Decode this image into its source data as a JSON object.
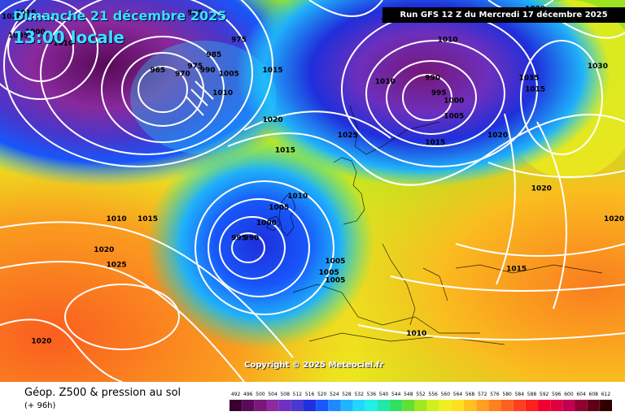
{
  "header": {
    "date_title": "Dimanche 21 décembre 2025",
    "time_title": "13:00 locale",
    "run_info": "Run GFS 12 Z du Mercredi 17 décembre 2025"
  },
  "footer": {
    "product_title": "Géop. Z500 & pression au sol",
    "product_subtitle": "(+ 96h)",
    "copyright": "Copyright © 2025 Meteociel.fr"
  },
  "legend": {
    "values": [
      "492",
      "496",
      "500",
      "504",
      "508",
      "512",
      "516",
      "520",
      "524",
      "528",
      "532",
      "536",
      "540",
      "544",
      "548",
      "552",
      "556",
      "560",
      "564",
      "568",
      "572",
      "576",
      "580",
      "584",
      "588",
      "592",
      "596",
      "600",
      "604",
      "608",
      "612"
    ],
    "colors": [
      "#3a0032",
      "#5a0a58",
      "#7a187a",
      "#8c2aa0",
      "#7030c0",
      "#4a38d0",
      "#2030e0",
      "#1858ff",
      "#1e88ff",
      "#20b4ff",
      "#20d8ff",
      "#20f0e6",
      "#20e8a8",
      "#30e060",
      "#60e030",
      "#a0e820",
      "#d0f020",
      "#f0f020",
      "#ffe020",
      "#ffc020",
      "#ffa020",
      "#ff8020",
      "#ff6020",
      "#ff4020",
      "#ff2020",
      "#f00030",
      "#e00040",
      "#c00050",
      "#900030",
      "#600018",
      "#300000"
    ]
  },
  "isobars": [
    {
      "label": "1015",
      "x": 2.5,
      "y": 2
    },
    {
      "label": "1020",
      "x": 0,
      "y": 3
    },
    {
      "label": "1005",
      "x": 1.3,
      "y": 8
    },
    {
      "label": "1000",
      "x": 4,
      "y": 7
    },
    {
      "label": "1010",
      "x": 8.5,
      "y": 10
    },
    {
      "label": "995",
      "x": 30,
      "y": 2
    },
    {
      "label": "975",
      "x": 37,
      "y": 9
    },
    {
      "label": "985",
      "x": 33,
      "y": 13
    },
    {
      "label": "975",
      "x": 30,
      "y": 16
    },
    {
      "label": "965",
      "x": 24,
      "y": 17
    },
    {
      "label": "970",
      "x": 28,
      "y": 18
    },
    {
      "label": "990",
      "x": 32,
      "y": 17
    },
    {
      "label": "1005",
      "x": 35,
      "y": 18
    },
    {
      "label": "1010",
      "x": 34,
      "y": 23
    },
    {
      "label": "1015",
      "x": 42,
      "y": 17
    },
    {
      "label": "1020",
      "x": 42,
      "y": 30
    },
    {
      "label": "1015",
      "x": 44,
      "y": 38
    },
    {
      "label": "1025",
      "x": 54,
      "y": 34
    },
    {
      "label": "1010",
      "x": 60,
      "y": 20
    },
    {
      "label": "1010",
      "x": 70,
      "y": 9
    },
    {
      "label": "990",
      "x": 68,
      "y": 19
    },
    {
      "label": "995",
      "x": 69,
      "y": 23
    },
    {
      "label": "1000",
      "x": 71,
      "y": 25
    },
    {
      "label": "1005",
      "x": 71,
      "y": 29
    },
    {
      "label": "1015",
      "x": 68,
      "y": 36
    },
    {
      "label": "1020",
      "x": 78,
      "y": 34
    },
    {
      "label": "1035",
      "x": 83,
      "y": 19
    },
    {
      "label": "1015",
      "x": 84,
      "y": 22
    },
    {
      "label": "1030",
      "x": 94,
      "y": 16
    },
    {
      "label": "1020",
      "x": 85,
      "y": 48
    },
    {
      "label": "1020",
      "x": 98,
      "y": 56
    },
    {
      "label": "1010",
      "x": 46,
      "y": 50
    },
    {
      "label": "1005",
      "x": 43,
      "y": 53
    },
    {
      "label": "1000",
      "x": 41,
      "y": 57
    },
    {
      "label": "995",
      "x": 37,
      "y": 61
    },
    {
      "label": "990",
      "x": 39,
      "y": 61
    },
    {
      "label": "1010",
      "x": 17,
      "y": 56
    },
    {
      "label": "1015",
      "x": 22,
      "y": 56
    },
    {
      "label": "1020",
      "x": 15,
      "y": 64
    },
    {
      "label": "1025",
      "x": 17,
      "y": 68
    },
    {
      "label": "1005",
      "x": 52,
      "y": 67
    },
    {
      "label": "1005",
      "x": 51,
      "y": 70
    },
    {
      "label": "1005",
      "x": 52,
      "y": 72
    },
    {
      "label": "1015",
      "x": 81,
      "y": 69
    },
    {
      "label": "1010",
      "x": 65,
      "y": 86
    },
    {
      "label": "1020",
      "x": 5,
      "y": 88
    },
    {
      "label": "970",
      "x": 61,
      "y": 4
    },
    {
      "label": "1020",
      "x": 84,
      "y": 1
    }
  ]
}
